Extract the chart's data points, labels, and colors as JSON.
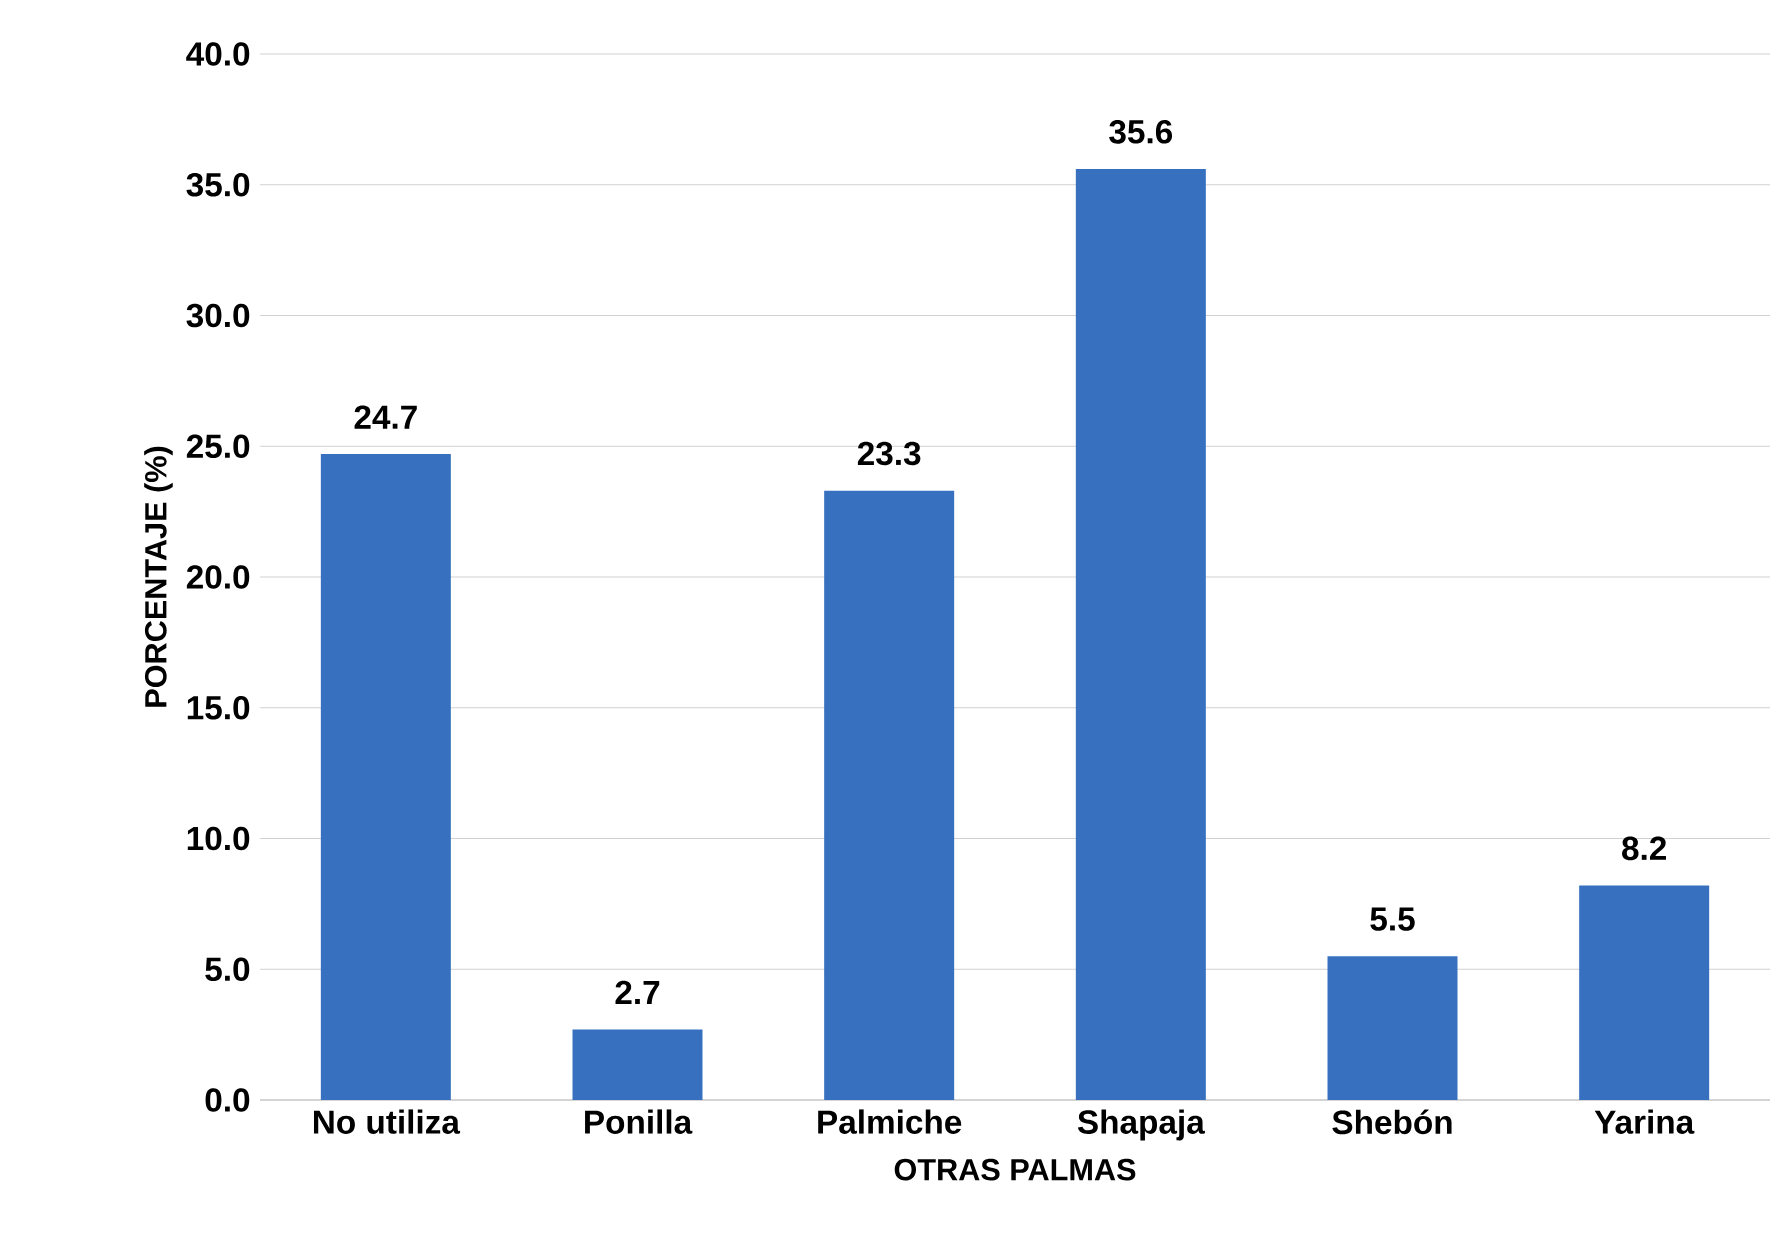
{
  "chart_data": {
    "type": "bar",
    "xlabel": "OTRAS PALMAS",
    "ylabel": "PORCENTAJE (%)",
    "categories": [
      "No utiliza",
      "Ponilla",
      "Palmiche",
      "Shapaja",
      "Shebón",
      "Yarina"
    ],
    "values": [
      24.7,
      2.7,
      23.3,
      35.6,
      5.5,
      8.2
    ],
    "color": "#3670bf",
    "ylim": [
      0,
      40
    ],
    "yticks": [
      {
        "value": 0,
        "label": "0.0"
      },
      {
        "value": 5,
        "label": "5.0"
      },
      {
        "value": 10,
        "label": "10.0"
      },
      {
        "value": 15,
        "label": "15.0"
      },
      {
        "value": 20,
        "label": "20.0"
      },
      {
        "value": 25,
        "label": "25.0"
      },
      {
        "value": 30,
        "label": "30.0"
      },
      {
        "value": 35,
        "label": "35.0"
      },
      {
        "value": 40,
        "label": "40.0"
      }
    ],
    "grid": "y",
    "data_labels": true
  }
}
